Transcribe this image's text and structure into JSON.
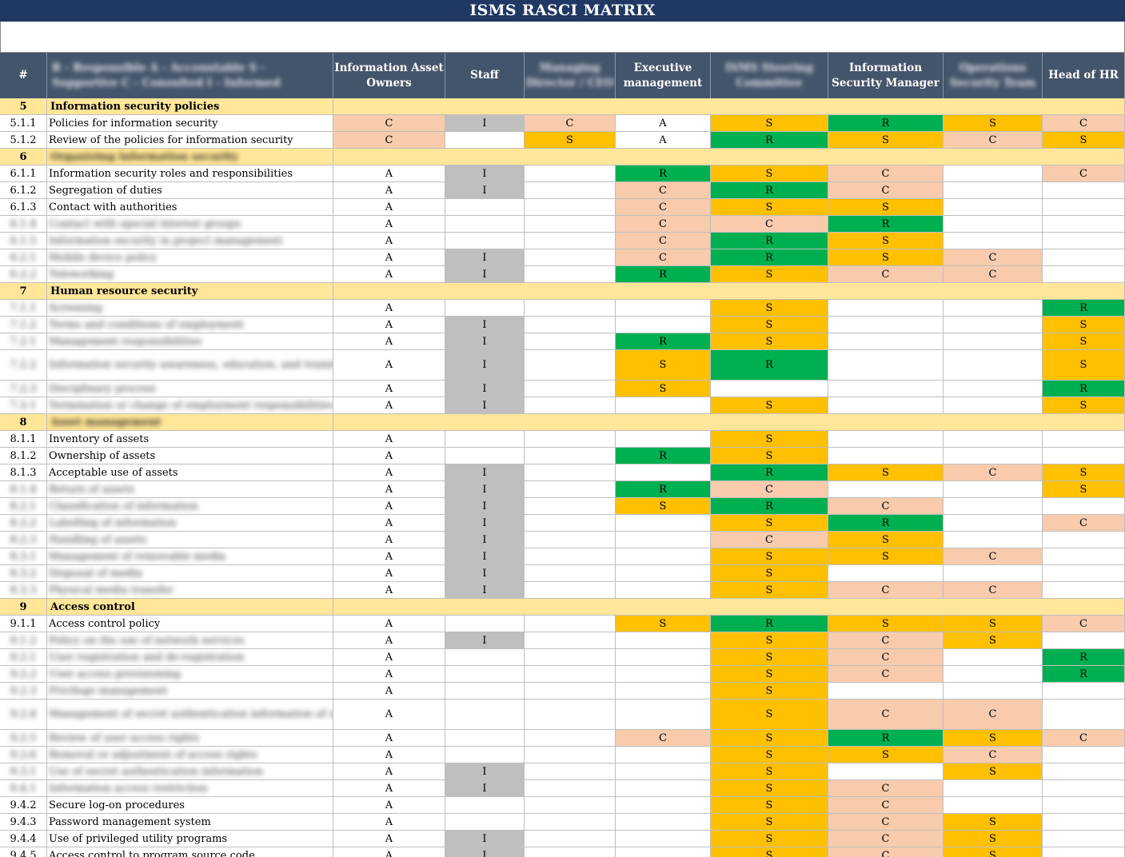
{
  "title": "ISMS RASCI MATRIX",
  "headers": [
    {
      "label": "#",
      "blurred": false
    },
    {
      "label": "R - Responsible  A - Accountable  S - Supportive  C - Consulted  I - Informed",
      "blurred": true
    },
    {
      "label": "Information Asset Owners",
      "blurred": false
    },
    {
      "label": "Staff",
      "blurred": false
    },
    {
      "label": "Managing Director / CEO",
      "blurred": true
    },
    {
      "label": "Executive management",
      "blurred": false
    },
    {
      "label": "ISMS Steering Committee",
      "blurred": true
    },
    {
      "label": "Information Security Manager",
      "blurred": false
    },
    {
      "label": "Operations Security Team",
      "blurred": true
    },
    {
      "label": "Head of HR",
      "blurred": false
    }
  ],
  "colors": {
    "title_bg": "#203864",
    "header_bg": "#44546a",
    "section_bg": "#ffe699",
    "R": "#00b050",
    "S": "#ffc000",
    "C": "#f8cbad",
    "I": "#bfbfbf",
    "A": "#ffffff"
  },
  "rows": [
    {
      "type": "section",
      "num": "5",
      "label": "Information security policies",
      "blur": false
    },
    {
      "num": "5.1.1",
      "label": "Policies for information security",
      "blur": false,
      "v": [
        "C",
        "I",
        "C",
        "A",
        "S",
        "R",
        "S",
        "C"
      ]
    },
    {
      "num": "5.1.2",
      "label": "Review of the policies for information security",
      "blur": false,
      "v": [
        "C",
        "",
        "S",
        "A",
        "R",
        "S",
        "C",
        "S"
      ]
    },
    {
      "type": "section",
      "num": "6",
      "label": "Organizing information security",
      "blur": true
    },
    {
      "num": "6.1.1",
      "label": "Information security roles and responsibilities",
      "blur": false,
      "v": [
        "A",
        "I",
        "",
        "R",
        "S",
        "C",
        "",
        "C"
      ]
    },
    {
      "num": "6.1.2",
      "label": "Segregation of duties",
      "blur": false,
      "v": [
        "A",
        "I",
        "",
        "C",
        "R",
        "C",
        "",
        ""
      ]
    },
    {
      "num": "6.1.3",
      "label": "Contact with authorities",
      "blur": false,
      "v": [
        "A",
        "",
        "",
        "C",
        "S",
        "S",
        "",
        ""
      ]
    },
    {
      "num": "6.1.4",
      "label": "Contact with special interest groups",
      "blur": true,
      "v": [
        "A",
        "",
        "",
        "C",
        "C",
        "R",
        "",
        ""
      ]
    },
    {
      "num": "6.1.5",
      "label": "Information security in project management",
      "blur": true,
      "v": [
        "A",
        "",
        "",
        "C",
        "R",
        "S",
        "",
        ""
      ]
    },
    {
      "num": "6.2.1",
      "label": "Mobile device policy",
      "blur": true,
      "v": [
        "A",
        "I",
        "",
        "C",
        "R",
        "S",
        "C",
        ""
      ]
    },
    {
      "num": "6.2.2",
      "label": "Teleworking",
      "blur": true,
      "v": [
        "A",
        "I",
        "",
        "R",
        "S",
        "C",
        "C",
        ""
      ]
    },
    {
      "type": "section",
      "num": "7",
      "label": "Human resource security",
      "blur": false
    },
    {
      "num": "7.1.1",
      "label": "Screening",
      "blur": true,
      "v": [
        "A",
        "",
        "",
        "",
        "S",
        "",
        "",
        "R"
      ]
    },
    {
      "num": "7.1.2",
      "label": "Terms and conditions of employment",
      "blur": true,
      "v": [
        "A",
        "I",
        "",
        "",
        "S",
        "",
        "",
        "S"
      ]
    },
    {
      "num": "7.2.1",
      "label": "Management responsibilities",
      "blur": true,
      "v": [
        "A",
        "I",
        "",
        "R",
        "S",
        "",
        "",
        "S"
      ]
    },
    {
      "num": "7.2.2",
      "label": "Information security awareness, education, and training",
      "blur": true,
      "tall": true,
      "v": [
        "A",
        "I",
        "",
        "S",
        "R",
        "",
        "",
        "S"
      ]
    },
    {
      "num": "7.2.3",
      "label": "Disciplinary process",
      "blur": true,
      "v": [
        "A",
        "I",
        "",
        "S",
        "",
        "",
        "",
        "R"
      ]
    },
    {
      "num": "7.3.1",
      "label": "Termination or change of employment responsibilities",
      "blur": true,
      "v": [
        "A",
        "I",
        "",
        "",
        "S",
        "",
        "",
        "S"
      ]
    },
    {
      "type": "section",
      "num": "8",
      "label": "Asset management",
      "blur": true
    },
    {
      "num": "8.1.1",
      "label": "Inventory of assets",
      "blur": false,
      "v": [
        "A",
        "",
        "",
        "",
        "S",
        "",
        "",
        ""
      ]
    },
    {
      "num": "8.1.2",
      "label": "Ownership of assets",
      "blur": false,
      "v": [
        "A",
        "",
        "",
        "R",
        "S",
        "",
        "",
        ""
      ]
    },
    {
      "num": "8.1.3",
      "label": "Acceptable use of assets",
      "blur": false,
      "v": [
        "A",
        "I",
        "",
        "",
        "R",
        "S",
        "C",
        "S"
      ]
    },
    {
      "num": "8.1.4",
      "label": "Return of assets",
      "blur": true,
      "v": [
        "A",
        "I",
        "",
        "R",
        "C",
        "",
        "",
        "S"
      ]
    },
    {
      "num": "8.2.1",
      "label": "Classification of information",
      "blur": true,
      "v": [
        "A",
        "I",
        "",
        "S",
        "R",
        "C",
        "",
        ""
      ]
    },
    {
      "num": "8.2.2",
      "label": "Labelling of information",
      "blur": true,
      "v": [
        "A",
        "I",
        "",
        "",
        "S",
        "R",
        "",
        "C"
      ]
    },
    {
      "num": "8.2.3",
      "label": "Handling of assets",
      "blur": true,
      "v": [
        "A",
        "I",
        "",
        "",
        "C",
        "S",
        "",
        ""
      ]
    },
    {
      "num": "8.3.1",
      "label": "Management of removable media",
      "blur": true,
      "v": [
        "A",
        "I",
        "",
        "",
        "S",
        "S",
        "C",
        ""
      ]
    },
    {
      "num": "8.3.2",
      "label": "Disposal of media",
      "blur": true,
      "v": [
        "A",
        "I",
        "",
        "",
        "S",
        "",
        "",
        ""
      ]
    },
    {
      "num": "8.3.3",
      "label": "Physical media transfer",
      "blur": true,
      "v": [
        "A",
        "I",
        "",
        "",
        "S",
        "C",
        "C",
        ""
      ]
    },
    {
      "type": "section",
      "num": "9",
      "label": "Access control",
      "blur": false
    },
    {
      "num": "9.1.1",
      "label": "Access control policy",
      "blur": false,
      "v": [
        "A",
        "",
        "",
        "S",
        "R",
        "S",
        "S",
        "C"
      ]
    },
    {
      "num": "9.1.2",
      "label": "Policy on the use of network services",
      "blur": true,
      "v": [
        "A",
        "I",
        "",
        "",
        "S",
        "C",
        "S",
        ""
      ]
    },
    {
      "num": "9.2.1",
      "label": "User registration and de-registration",
      "blur": true,
      "v": [
        "A",
        "",
        "",
        "",
        "S",
        "C",
        "",
        "R"
      ]
    },
    {
      "num": "9.2.2",
      "label": "User access provisioning",
      "blur": true,
      "v": [
        "A",
        "",
        "",
        "",
        "S",
        "C",
        "",
        "R"
      ]
    },
    {
      "num": "9.2.3",
      "label": "Privilege management",
      "blur": true,
      "v": [
        "A",
        "",
        "",
        "",
        "S",
        "",
        "",
        ""
      ]
    },
    {
      "num": "9.2.4",
      "label": "Management of secret authentication information of users",
      "blur": true,
      "tall": true,
      "v": [
        "A",
        "",
        "",
        "",
        "S",
        "C",
        "C",
        ""
      ]
    },
    {
      "num": "9.2.5",
      "label": "Review of user access rights",
      "blur": true,
      "v": [
        "A",
        "",
        "",
        "C",
        "S",
        "R",
        "S",
        "C"
      ]
    },
    {
      "num": "9.2.6",
      "label": "Removal or adjustment of access rights",
      "blur": true,
      "v": [
        "A",
        "",
        "",
        "",
        "S",
        "S",
        "C",
        ""
      ]
    },
    {
      "num": "9.3.1",
      "label": "Use of secret authentication information",
      "blur": true,
      "v": [
        "A",
        "I",
        "",
        "",
        "S",
        "",
        "S",
        ""
      ]
    },
    {
      "num": "9.4.1",
      "label": "Information access restriction",
      "blur": true,
      "v": [
        "A",
        "I",
        "",
        "",
        "S",
        "C",
        "",
        ""
      ]
    },
    {
      "num": "9.4.2",
      "label": "Secure log-on procedures",
      "blur": false,
      "v": [
        "A",
        "",
        "",
        "",
        "S",
        "C",
        "",
        ""
      ]
    },
    {
      "num": "9.4.3",
      "label": "Password management system",
      "blur": false,
      "v": [
        "A",
        "",
        "",
        "",
        "S",
        "C",
        "S",
        ""
      ]
    },
    {
      "num": "9.4.4",
      "label": "Use of privileged utility programs",
      "blur": false,
      "v": [
        "A",
        "I",
        "",
        "",
        "S",
        "C",
        "S",
        ""
      ]
    },
    {
      "num": "9.4.5",
      "label": "Access control to program source code",
      "blur": false,
      "v": [
        "A",
        "I",
        "",
        "",
        "S",
        "C",
        "S",
        ""
      ]
    }
  ]
}
